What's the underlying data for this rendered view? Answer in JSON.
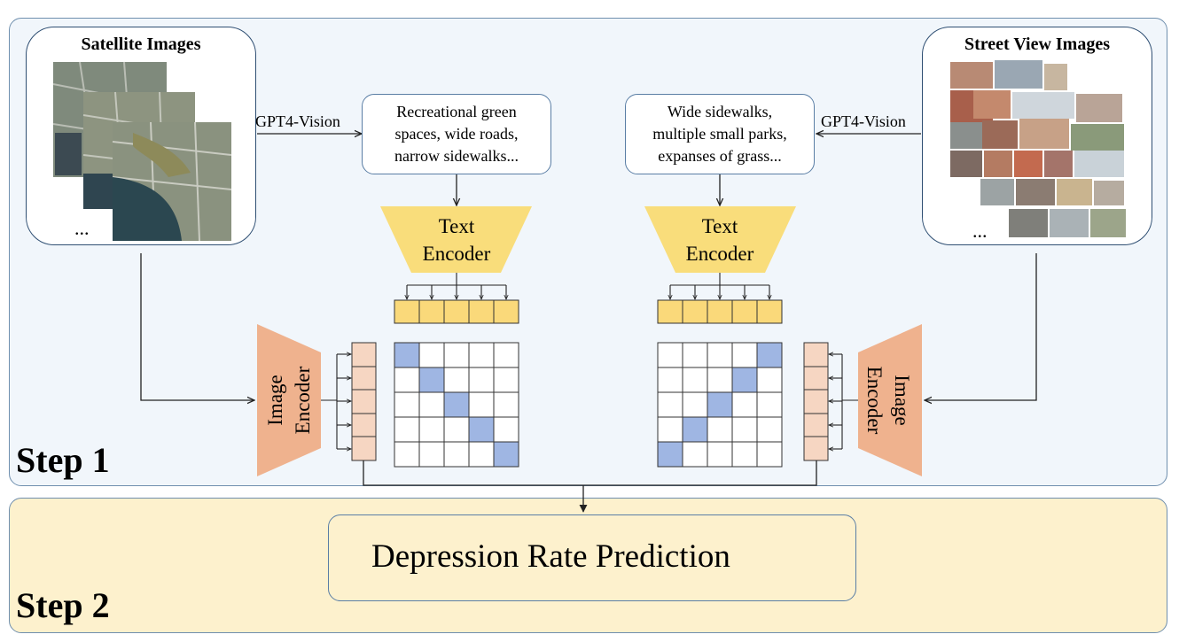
{
  "step1": {
    "label": "Step 1"
  },
  "step2": {
    "label": "Step 2"
  },
  "satellite": {
    "title": "Satellite Images",
    "ellipsis": "..."
  },
  "street": {
    "title": "Street View Images",
    "ellipsis": "..."
  },
  "gpt_left": "GPT4-Vision",
  "gpt_right": "GPT4-Vision",
  "desc_left": [
    "Recreational green",
    "spaces, wide roads,",
    "narrow sidewalks..."
  ],
  "desc_right": [
    "Wide sidewalks,",
    "multiple small parks,",
    "expanses of grass..."
  ],
  "text_encoder": [
    "Text",
    "Encoder"
  ],
  "image_encoder": [
    "Image",
    "Encoder"
  ],
  "prediction": {
    "label": "Depression Rate Prediction",
    "icon": "heart-report-icon"
  },
  "colors": {
    "text_encoder": "#f9dd7b",
    "image_encoder": "#efb28e",
    "token_yellow": "#fad97a",
    "token_peach": "#f6d6c2",
    "highlight": "#9fb6e3",
    "icon": "#f0735d"
  }
}
